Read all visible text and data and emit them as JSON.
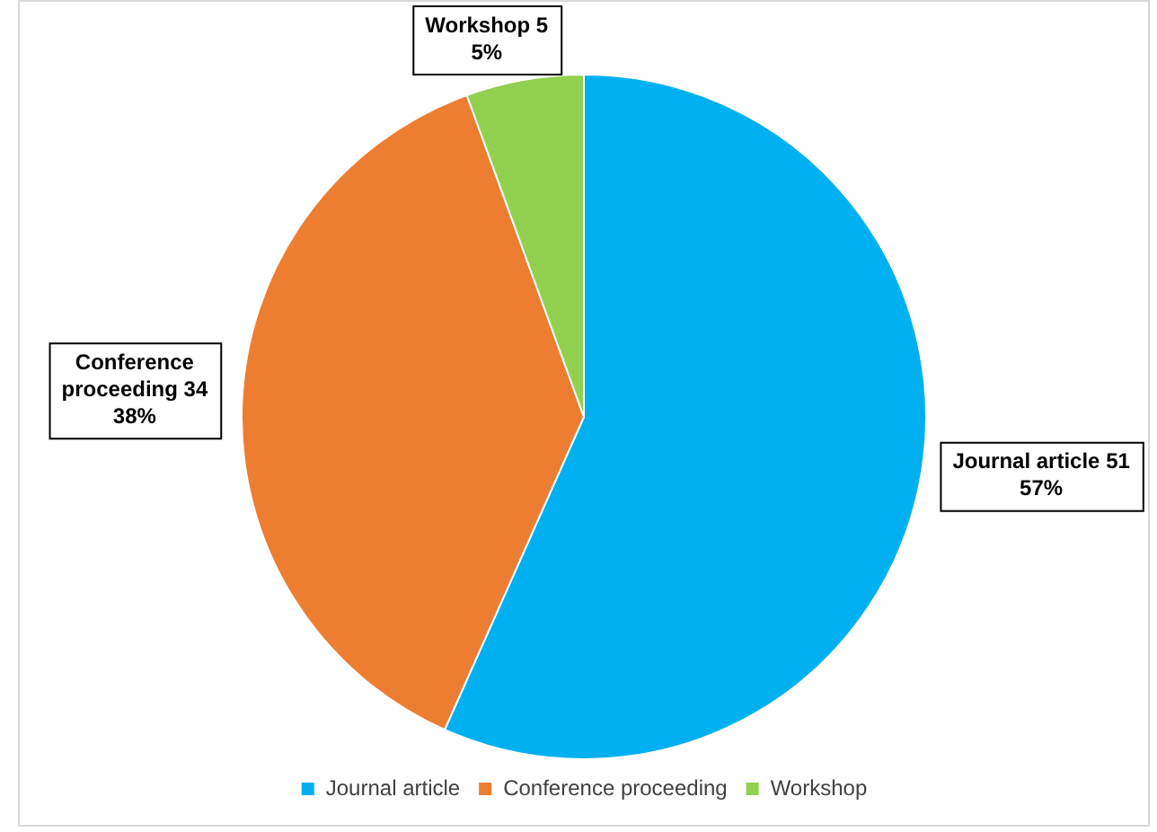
{
  "chart_data": {
    "type": "pie",
    "categories": [
      "Journal article",
      "Conference proceeding",
      "Workshop"
    ],
    "values": [
      51,
      34,
      5
    ],
    "colors": [
      "#00b0f0",
      "#ed7d31",
      "#92d050"
    ],
    "value_labels": [
      "Journal article 51\n57%",
      "Conference\nproceeding 34\n38%",
      "Workshop 5\n5%"
    ],
    "legend": "bottom"
  }
}
